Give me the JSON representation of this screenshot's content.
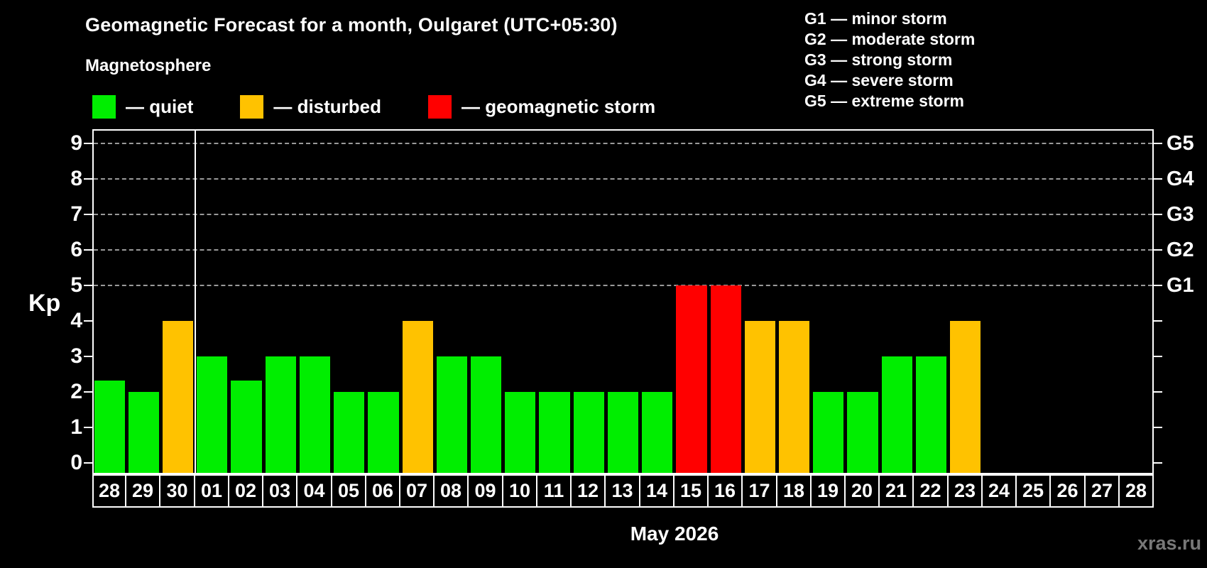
{
  "header": {
    "title": "Geomagnetic Forecast for a month, Oulgaret (UTC+05:30)",
    "subtitle": "Magnetosphere"
  },
  "legend": {
    "items": [
      {
        "status": "quiet",
        "label": "— quiet",
        "color": "#00ee00"
      },
      {
        "status": "disturbed",
        "label": "— disturbed",
        "color": "#ffc200"
      },
      {
        "status": "storm",
        "label": "— geomagnetic storm",
        "color": "#ff0000"
      }
    ]
  },
  "g_legend": {
    "items": [
      "G1 — minor storm",
      "G2 — moderate storm",
      "G3 — strong storm",
      "G4 — severe storm",
      "G5 — extreme storm"
    ]
  },
  "chart_data": {
    "type": "bar",
    "title": "Geomagnetic Forecast for a month, Oulgaret (UTC+05:30)",
    "subtitle": "Magnetosphere",
    "ylabel": "Kp",
    "xlabel": "May 2026",
    "ylim": [
      0,
      9
    ],
    "yticks": [
      0,
      1,
      2,
      3,
      4,
      5,
      6,
      7,
      8,
      9
    ],
    "gridlines_at": [
      5,
      6,
      7,
      8,
      9
    ],
    "grid": "dashed",
    "right_axis": [
      {
        "label": "G1",
        "value": 5
      },
      {
        "label": "G2",
        "value": 6
      },
      {
        "label": "G3",
        "value": 7
      },
      {
        "label": "G4",
        "value": 8
      },
      {
        "label": "G5",
        "value": 9
      }
    ],
    "categories": [
      "28",
      "29",
      "30",
      "01",
      "02",
      "03",
      "04",
      "05",
      "06",
      "07",
      "08",
      "09",
      "10",
      "11",
      "12",
      "13",
      "14",
      "15",
      "16",
      "17",
      "18",
      "19",
      "20",
      "21",
      "22",
      "23",
      "24",
      "25",
      "26",
      "27",
      "28"
    ],
    "values": [
      2.33,
      2,
      4,
      3,
      2.33,
      3,
      3,
      2,
      2,
      4,
      3,
      3,
      2,
      2,
      2,
      2,
      2,
      5,
      5,
      4,
      4,
      2,
      2,
      3,
      3,
      4,
      null,
      null,
      null,
      null,
      null
    ],
    "statuses": [
      "quiet",
      "quiet",
      "disturbed",
      "quiet",
      "quiet",
      "quiet",
      "quiet",
      "quiet",
      "quiet",
      "disturbed",
      "quiet",
      "quiet",
      "quiet",
      "quiet",
      "quiet",
      "quiet",
      "quiet",
      "storm",
      "storm",
      "disturbed",
      "disturbed",
      "quiet",
      "quiet",
      "quiet",
      "quiet",
      "disturbed",
      null,
      null,
      null,
      null,
      null
    ],
    "month_separator_after_index": 2,
    "colors": {
      "quiet": "#00ee00",
      "disturbed": "#ffc200",
      "storm": "#ff0000",
      "grid": "#9a9a9a",
      "axis": "#ffffff"
    }
  },
  "footer": {
    "month_label": "May 2026",
    "watermark": "xras.ru"
  }
}
